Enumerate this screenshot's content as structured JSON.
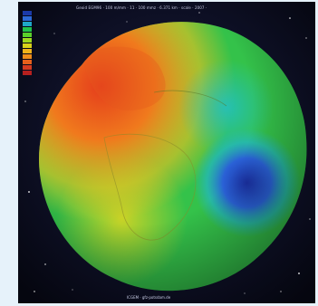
{
  "image": {
    "header_text": "Geoid EGM96 · 100 m/mm · 11 · 100 mmz · 6.371 km · scale · 2007 ·",
    "footer_text": "ICGEM · gfz-potsdam.de"
  },
  "legend": {
    "colors": [
      "#1b3aa8",
      "#2d6ad6",
      "#1fa7c8",
      "#23c24a",
      "#5ad12a",
      "#9fd81e",
      "#d7d21b",
      "#f0b21a",
      "#ef8c19",
      "#e5601c",
      "#d33a20",
      "#b6201f"
    ]
  },
  "colors": {
    "frame_bg": "#0b0d1f",
    "page_bg": "#e6f2fa"
  }
}
